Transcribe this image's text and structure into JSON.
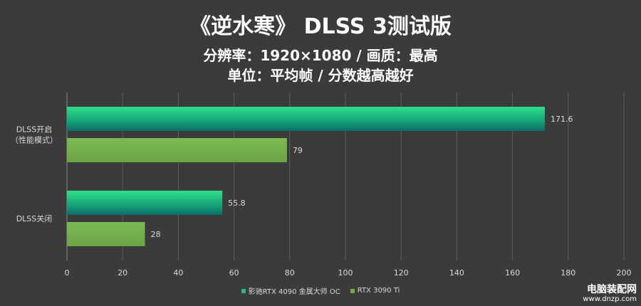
{
  "title": "《逆水寒》 DLSS 3测试版",
  "subtitle1": "分辨率：1920×1080 / 画质：最高",
  "subtitle2": "单位：平均帧 / 分数越高越好",
  "watermark": {
    "name": "电脑装配网",
    "url": "www.dnzp.com"
  },
  "chart_data": {
    "type": "bar",
    "orientation": "horizontal",
    "categories": [
      "DLSS开启\n（性能模式）",
      "DLSS关闭"
    ],
    "series": [
      {
        "name": "影驰RTX 4090 金属大师 OC",
        "values": [
          171.6,
          55.8
        ],
        "color": "#1fbf7a"
      },
      {
        "name": "RTX 3090 Ti",
        "values": [
          79,
          28
        ],
        "color": "#70ad47"
      }
    ],
    "xlim": [
      0,
      200
    ],
    "xticks": [
      0,
      20,
      40,
      60,
      80,
      100,
      120,
      140,
      160,
      180,
      200
    ],
    "grid": true,
    "legend": "bottom"
  }
}
